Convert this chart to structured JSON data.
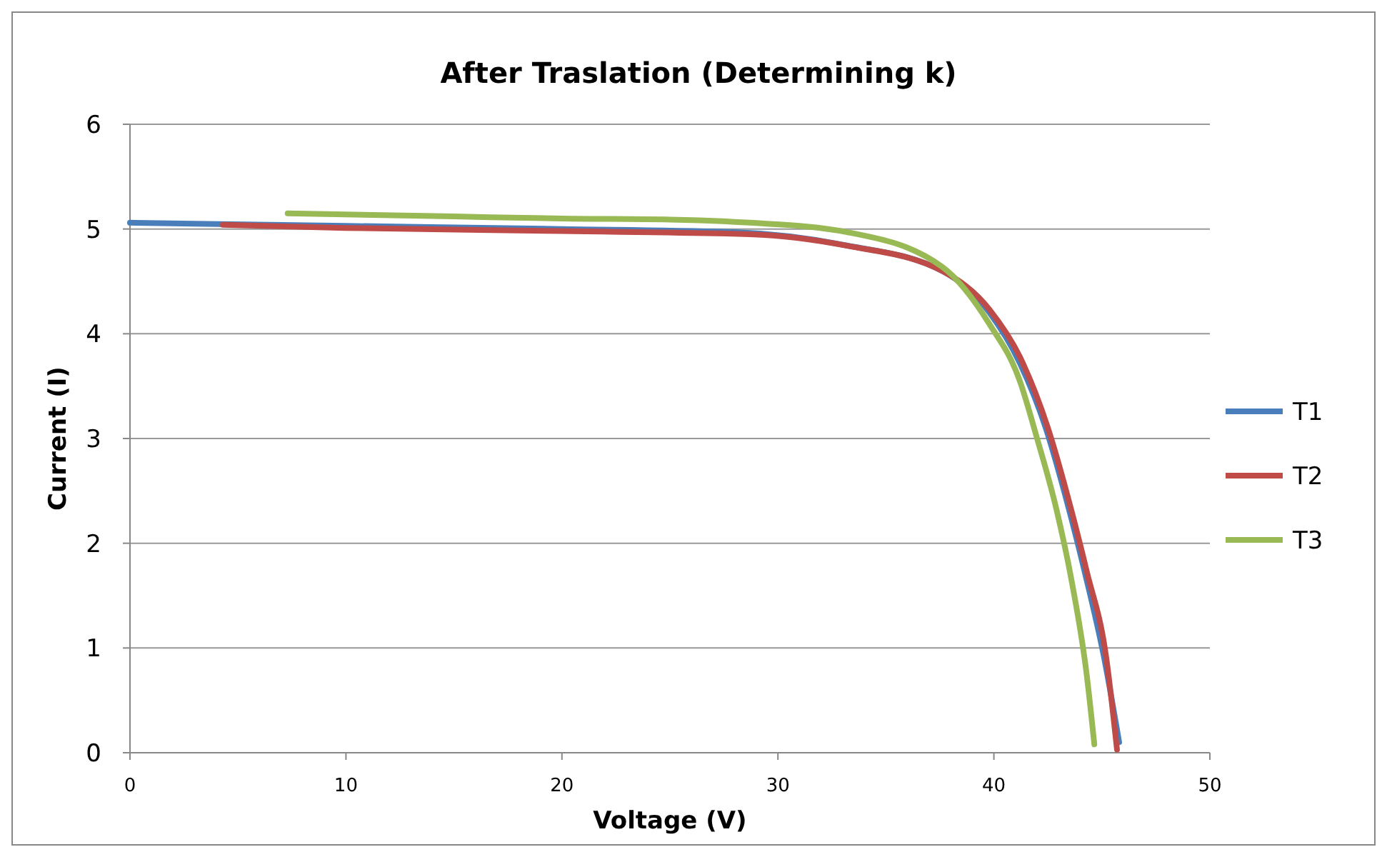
{
  "chart_data": {
    "type": "line",
    "title": "After Traslation (Determining k)",
    "xlabel": "Voltage (V)",
    "ylabel": "Current (I)",
    "xlim": [
      0,
      50
    ],
    "xticks": [
      0,
      10,
      20,
      30,
      40,
      50
    ],
    "ylim": [
      0,
      6
    ],
    "yticks": [
      0,
      1,
      2,
      3,
      4,
      5,
      6
    ],
    "grid": "y",
    "legend": "right",
    "marker": "none",
    "line_style": "solid",
    "series": [
      {
        "name": "T1",
        "color": "#4a7ebb",
        "x": [
          0,
          10,
          20,
          28,
          33,
          37.6,
          39.8,
          41.2,
          42.4,
          43.3,
          44.2,
          45.1,
          45.8
        ],
        "values": [
          5.06,
          5.03,
          5.0,
          4.97,
          4.85,
          4.6,
          4.2,
          3.72,
          3.1,
          2.46,
          1.73,
          0.91,
          0.1
        ]
      },
      {
        "name": "T2",
        "color": "#be4b48",
        "x": [
          4.3,
          10,
          20,
          28.7,
          33.2,
          37.6,
          39.8,
          41.2,
          42.5,
          43.4,
          44.3,
          45.2,
          45.7
        ],
        "values": [
          5.04,
          5.01,
          4.98,
          4.95,
          4.84,
          4.6,
          4.23,
          3.78,
          3.1,
          2.46,
          1.73,
          0.91,
          0.03
        ]
      },
      {
        "name": "T3",
        "color": "#98b954",
        "x": [
          7.3,
          15,
          20,
          25,
          28.7,
          33.2,
          37.6,
          39.8,
          41.2,
          42,
          42.9,
          43.6,
          44.3,
          44.65
        ],
        "values": [
          5.15,
          5.12,
          5.1,
          5.09,
          5.06,
          4.97,
          4.64,
          4.09,
          3.55,
          3.0,
          2.32,
          1.64,
          0.74,
          0.08
        ]
      }
    ]
  }
}
